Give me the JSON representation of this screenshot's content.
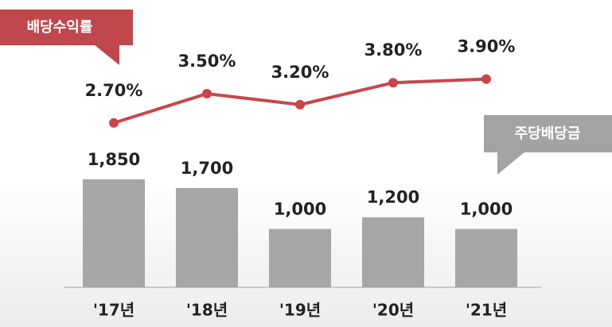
{
  "chart_data": {
    "type": "bar_line",
    "categories": [
      "'17년",
      "'18년",
      "'19년",
      "'20년",
      "'21년"
    ],
    "series": [
      {
        "name": "주당배당금",
        "type": "bar",
        "color": "#a6a6a6",
        "values": [
          1850,
          1700,
          1000,
          1200,
          1000
        ],
        "value_labels": [
          "1,850",
          "1,700",
          "1,000",
          "1,200",
          "1,000"
        ]
      },
      {
        "name": "배당수익률",
        "type": "line",
        "axis": "y2",
        "color": "#c8464b",
        "values": [
          2.7,
          3.5,
          3.2,
          3.8,
          3.9
        ],
        "value_labels": [
          "2.70%",
          "3.50%",
          "3.20%",
          "3.80%",
          "3.90%"
        ]
      }
    ],
    "ylim": [
      0,
      4650
    ],
    "y2lim": [
      -1.8,
      5.63
    ]
  }
}
